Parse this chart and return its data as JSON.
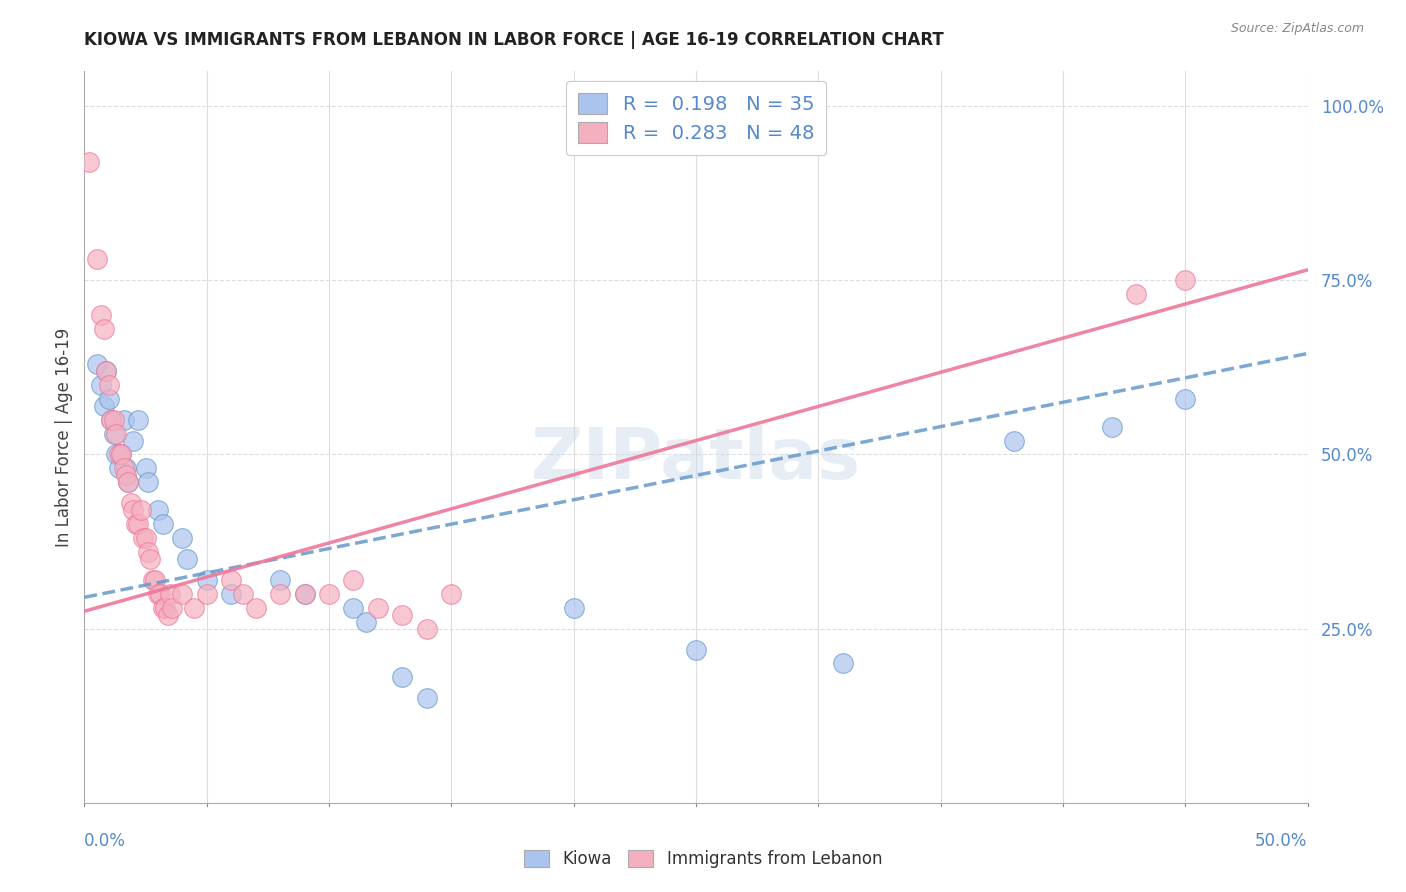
{
  "title": "KIOWA VS IMMIGRANTS FROM LEBANON IN LABOR FORCE | AGE 16-19 CORRELATION CHART",
  "source": "Source: ZipAtlas.com",
  "ylabel": "In Labor Force | Age 16-19",
  "ylabel_right_ticks": [
    "100.0%",
    "75.0%",
    "50.0%",
    "25.0%"
  ],
  "ylabel_right_vals": [
    1.0,
    0.75,
    0.5,
    0.25
  ],
  "xmin": 0.0,
  "xmax": 0.5,
  "ymin": 0.0,
  "ymax": 1.05,
  "watermark": "ZIPatlas",
  "kiowa_color": "#aac4ed",
  "lebanon_color": "#f5b0c0",
  "kiowa_line_color": "#6699cc",
  "lebanon_line_color": "#ee7799",
  "kiowa_scatter": [
    [
      0.005,
      0.63
    ],
    [
      0.007,
      0.6
    ],
    [
      0.008,
      0.57
    ],
    [
      0.009,
      0.62
    ],
    [
      0.01,
      0.58
    ],
    [
      0.011,
      0.55
    ],
    [
      0.012,
      0.53
    ],
    [
      0.013,
      0.5
    ],
    [
      0.014,
      0.48
    ],
    [
      0.015,
      0.5
    ],
    [
      0.016,
      0.55
    ],
    [
      0.017,
      0.48
    ],
    [
      0.018,
      0.46
    ],
    [
      0.02,
      0.52
    ],
    [
      0.022,
      0.55
    ],
    [
      0.025,
      0.48
    ],
    [
      0.026,
      0.46
    ],
    [
      0.03,
      0.42
    ],
    [
      0.032,
      0.4
    ],
    [
      0.04,
      0.38
    ],
    [
      0.042,
      0.35
    ],
    [
      0.05,
      0.32
    ],
    [
      0.06,
      0.3
    ],
    [
      0.08,
      0.32
    ],
    [
      0.09,
      0.3
    ],
    [
      0.11,
      0.28
    ],
    [
      0.115,
      0.26
    ],
    [
      0.13,
      0.18
    ],
    [
      0.14,
      0.15
    ],
    [
      0.2,
      0.28
    ],
    [
      0.25,
      0.22
    ],
    [
      0.31,
      0.2
    ],
    [
      0.38,
      0.52
    ],
    [
      0.42,
      0.54
    ],
    [
      0.45,
      0.58
    ]
  ],
  "lebanon_scatter": [
    [
      0.002,
      0.92
    ],
    [
      0.005,
      0.78
    ],
    [
      0.007,
      0.7
    ],
    [
      0.008,
      0.68
    ],
    [
      0.009,
      0.62
    ],
    [
      0.01,
      0.6
    ],
    [
      0.011,
      0.55
    ],
    [
      0.012,
      0.55
    ],
    [
      0.013,
      0.53
    ],
    [
      0.014,
      0.5
    ],
    [
      0.015,
      0.5
    ],
    [
      0.016,
      0.48
    ],
    [
      0.017,
      0.47
    ],
    [
      0.018,
      0.46
    ],
    [
      0.019,
      0.43
    ],
    [
      0.02,
      0.42
    ],
    [
      0.021,
      0.4
    ],
    [
      0.022,
      0.4
    ],
    [
      0.023,
      0.42
    ],
    [
      0.024,
      0.38
    ],
    [
      0.025,
      0.38
    ],
    [
      0.026,
      0.36
    ],
    [
      0.027,
      0.35
    ],
    [
      0.028,
      0.32
    ],
    [
      0.029,
      0.32
    ],
    [
      0.03,
      0.3
    ],
    [
      0.031,
      0.3
    ],
    [
      0.032,
      0.28
    ],
    [
      0.033,
      0.28
    ],
    [
      0.034,
      0.27
    ],
    [
      0.035,
      0.3
    ],
    [
      0.036,
      0.28
    ],
    [
      0.04,
      0.3
    ],
    [
      0.045,
      0.28
    ],
    [
      0.05,
      0.3
    ],
    [
      0.06,
      0.32
    ],
    [
      0.065,
      0.3
    ],
    [
      0.07,
      0.28
    ],
    [
      0.08,
      0.3
    ],
    [
      0.09,
      0.3
    ],
    [
      0.1,
      0.3
    ],
    [
      0.11,
      0.32
    ],
    [
      0.12,
      0.28
    ],
    [
      0.13,
      0.27
    ],
    [
      0.14,
      0.25
    ],
    [
      0.15,
      0.3
    ],
    [
      0.43,
      0.73
    ],
    [
      0.45,
      0.75
    ]
  ],
  "kiowa_R": 0.198,
  "kiowa_N": 35,
  "lebanon_R": 0.283,
  "lebanon_N": 48,
  "bg_color": "#ffffff",
  "grid_color": "#dddddd"
}
